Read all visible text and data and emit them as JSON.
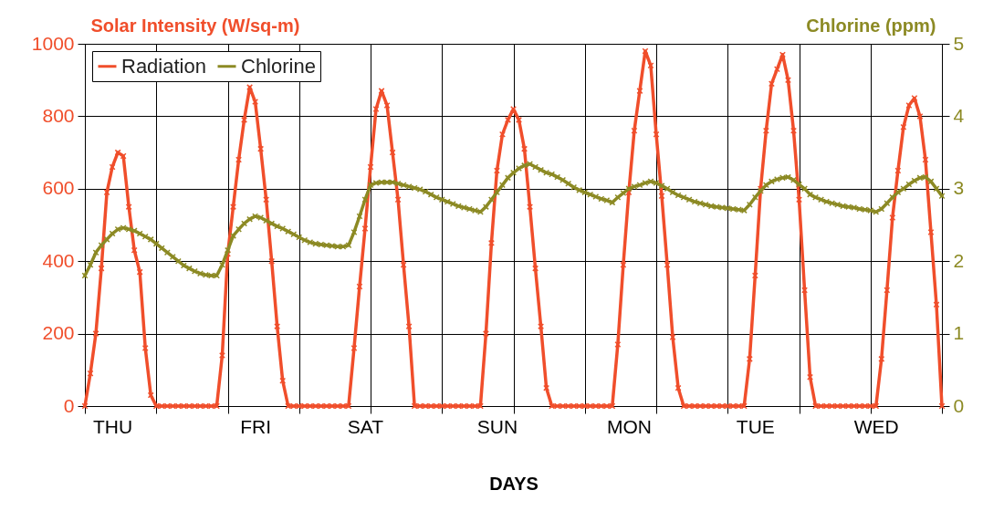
{
  "chart_data": {
    "type": "line",
    "ylabel": "Solar Intensity (W/sq-m)",
    "y2label": "Chlorine (ppm)",
    "xlabel": "DAYS",
    "categories": [
      null,
      null,
      null,
      null,
      null,
      "THU",
      null,
      null,
      null,
      null,
      null,
      null,
      null,
      null,
      null,
      null,
      null,
      null,
      null,
      null,
      null,
      null,
      null,
      null,
      null,
      null,
      null,
      null,
      null,
      null,
      null,
      "FRI",
      null,
      null,
      null,
      null,
      null,
      null,
      null,
      null,
      null,
      null,
      null,
      null,
      null,
      null,
      null,
      null,
      null,
      null,
      null,
      "SAT",
      null,
      null,
      null,
      null,
      null,
      null,
      null,
      null,
      null,
      null,
      null,
      null,
      null,
      null,
      null,
      null,
      null,
      null,
      null,
      null,
      null,
      null,
      null,
      "SUN",
      null,
      null,
      null,
      null,
      null,
      null,
      null,
      null,
      null,
      null,
      null,
      null,
      null,
      null,
      null,
      null,
      null,
      null,
      null,
      null,
      null,
      null,
      null,
      "MON",
      null,
      null,
      null,
      null,
      null,
      null,
      null,
      null,
      null,
      null,
      null,
      null,
      null,
      null,
      null,
      null,
      null,
      null,
      null,
      null,
      null,
      null,
      "TUE",
      null,
      null,
      null,
      null,
      null,
      null,
      null,
      null,
      null,
      null,
      null,
      null,
      null,
      null,
      null,
      null,
      null,
      null,
      null,
      null,
      null,
      "WED",
      null,
      null,
      null,
      null,
      null,
      null,
      null,
      null,
      null,
      null,
      null,
      null
    ],
    "ylim": [
      0,
      1000
    ],
    "yticks": [
      0,
      200,
      400,
      600,
      800,
      {
        "value": 1000,
        "label": "1000"
      }
    ],
    "y2lim": [
      0,
      5
    ],
    "y2ticks": [
      0,
      1,
      2,
      3,
      4,
      5
    ],
    "grid": true,
    "legend": "top left",
    "marker": "cross",
    "series": [
      {
        "name": "Radiation",
        "color": "#f04e2b",
        "values": [
          0,
          90,
          200,
          380,
          590,
          660,
          700,
          690,
          550,
          430,
          370,
          160,
          30,
          0,
          0,
          0,
          0,
          0,
          0,
          0,
          0,
          0,
          0,
          0,
          0,
          140,
          420,
          550,
          680,
          790,
          880,
          840,
          710,
          570,
          400,
          220,
          70,
          0,
          0,
          0,
          0,
          0,
          0,
          0,
          0,
          0,
          0,
          0,
          0,
          160,
          330,
          490,
          660,
          820,
          870,
          830,
          700,
          570,
          390,
          220,
          0,
          0,
          0,
          0,
          0,
          0,
          0,
          0,
          0,
          0,
          0,
          0,
          0,
          200,
          450,
          650,
          750,
          790,
          820,
          790,
          710,
          550,
          380,
          220,
          50,
          0,
          0,
          0,
          0,
          0,
          0,
          0,
          0,
          0,
          0,
          0,
          0,
          170,
          390,
          590,
          760,
          870,
          980,
          940,
          750,
          580,
          390,
          190,
          50,
          0,
          0,
          0,
          0,
          0,
          0,
          0,
          0,
          0,
          0,
          0,
          0,
          130,
          360,
          600,
          760,
          890,
          930,
          970,
          900,
          760,
          570,
          320,
          80,
          0,
          0,
          0,
          0,
          0,
          0,
          0,
          0,
          0,
          0,
          0,
          0,
          130,
          320,
          520,
          650,
          770,
          830,
          850,
          800,
          680,
          480,
          280,
          0
        ]
      },
      {
        "name": "Chlorine",
        "color": "#8c8a24",
        "axis": "y2",
        "values": [
          1.8,
          1.95,
          2.12,
          2.22,
          2.3,
          2.38,
          2.44,
          2.46,
          2.44,
          2.42,
          2.38,
          2.34,
          2.3,
          2.24,
          2.18,
          2.12,
          2.06,
          2.0,
          1.94,
          1.9,
          1.86,
          1.83,
          1.81,
          1.8,
          1.8,
          1.95,
          2.15,
          2.35,
          2.44,
          2.52,
          2.58,
          2.62,
          2.6,
          2.56,
          2.52,
          2.48,
          2.45,
          2.41,
          2.37,
          2.33,
          2.29,
          2.26,
          2.24,
          2.23,
          2.22,
          2.21,
          2.2,
          2.2,
          2.22,
          2.4,
          2.62,
          2.85,
          3.05,
          3.08,
          3.09,
          3.09,
          3.09,
          3.07,
          3.05,
          3.03,
          3.01,
          2.99,
          2.96,
          2.92,
          2.88,
          2.85,
          2.82,
          2.79,
          2.76,
          2.74,
          2.72,
          2.7,
          2.68,
          2.75,
          2.85,
          2.95,
          3.05,
          3.15,
          3.22,
          3.28,
          3.32,
          3.34,
          3.3,
          3.26,
          3.22,
          3.2,
          3.16,
          3.12,
          3.07,
          3.02,
          2.98,
          2.95,
          2.92,
          2.89,
          2.86,
          2.84,
          2.81,
          2.88,
          2.94,
          3.0,
          3.03,
          3.05,
          3.08,
          3.1,
          3.08,
          3.04,
          3.0,
          2.95,
          2.91,
          2.88,
          2.85,
          2.82,
          2.8,
          2.78,
          2.76,
          2.75,
          2.74,
          2.73,
          2.72,
          2.71,
          2.7,
          2.78,
          2.88,
          2.97,
          3.05,
          3.1,
          3.13,
          3.15,
          3.16,
          3.12,
          3.06,
          3.0,
          2.92,
          2.88,
          2.85,
          2.82,
          2.8,
          2.78,
          2.76,
          2.75,
          2.74,
          2.72,
          2.71,
          2.7,
          2.68,
          2.72,
          2.8,
          2.88,
          2.95,
          3.0,
          3.06,
          3.11,
          3.15,
          3.16,
          3.1,
          3.0,
          2.9
        ]
      }
    ]
  }
}
